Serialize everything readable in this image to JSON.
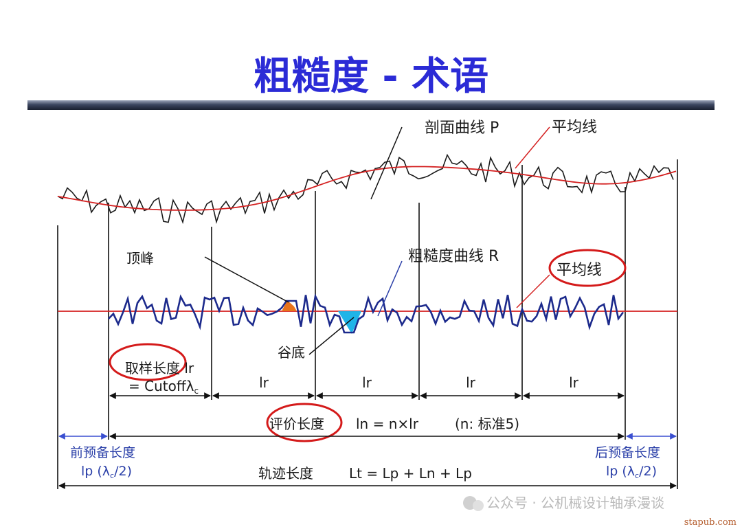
{
  "title": "粗糙度 - 术语",
  "labels": {
    "profile_curve": "剖面曲线 P",
    "mean_line_top": "平均线",
    "roughness_curve": "粗糙度曲线 R",
    "mean_line_mid": "平均线",
    "peak": "顶峰",
    "valley": "谷底",
    "sampling_length_1": "取样长度 lr",
    "sampling_length_2": "= Cutoffλ",
    "sampling_length_sub": "c",
    "lr_1": "lr",
    "lr_2": "lr",
    "lr_3": "lr",
    "lr_4": "lr",
    "evaluation_length": "评价长度",
    "evaluation_formula": "ln = n×lr",
    "evaluation_note": "(n:  标准5)",
    "pre_travel": "前预备长度",
    "pre_travel_formula_a": "lp (λ",
    "pre_travel_formula_sub": "c",
    "pre_travel_formula_b": "/2)",
    "post_travel": "后预备长度",
    "post_travel_formula_a": "lp (λ",
    "post_travel_formula_sub": "c",
    "post_travel_formula_b": "/2)",
    "traverse_length": "轨迹长度",
    "traverse_formula": "Lt = Lp + Ln + Lp"
  },
  "watermark": {
    "text": "公众号 · 公机械设计轴承漫谈",
    "site": "stapub.com"
  },
  "colors": {
    "title": "#2b2bd6",
    "profile_line": "#1a1a1a",
    "mean_line": "#d42020",
    "roughness_line": "#1c2a8c",
    "peak_fill": "#e8731c",
    "valley_fill": "#1fb4e8",
    "ellipse": "#d41a1a",
    "dimension": "#111111",
    "side_dimension": "#3a4fd0"
  }
}
